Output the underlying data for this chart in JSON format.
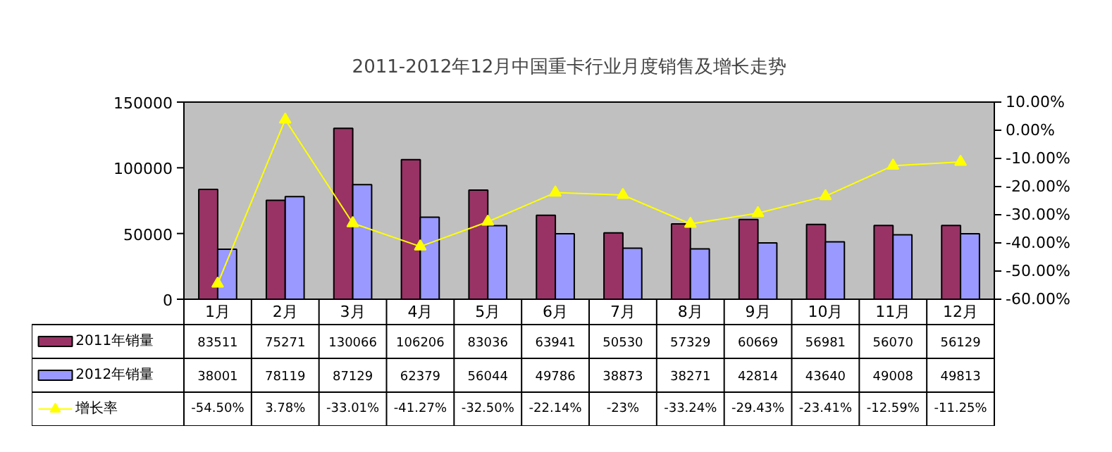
{
  "chart_data": {
    "type": "bar",
    "title": "2011-2012年12月中国重卡行业月度销售及增长走势",
    "categories": [
      "1月",
      "2月",
      "3月",
      "4月",
      "5月",
      "6月",
      "7月",
      "8月",
      "9月",
      "10月",
      "11月",
      "12月"
    ],
    "series": [
      {
        "name": "2011年销量",
        "color": "#993366",
        "values": [
          83511,
          75271,
          130066,
          106206,
          83036,
          63941,
          50530,
          57329,
          60669,
          56981,
          56070,
          56129
        ],
        "value_labels": [
          "83511",
          "75271",
          "130066",
          "106206",
          "83036",
          "63941",
          "50530",
          "57329",
          "60669",
          "56981",
          "56070",
          "56129"
        ]
      },
      {
        "name": "2012年销量",
        "color": "#9999ff",
        "values": [
          38001,
          78119,
          87129,
          62379,
          56044,
          49786,
          38873,
          38271,
          42814,
          43640,
          49008,
          49813
        ],
        "value_labels": [
          "38001",
          "78119",
          "87129",
          "62379",
          "56044",
          "49786",
          "38873",
          "38271",
          "42814",
          "43640",
          "49008",
          "49813"
        ]
      },
      {
        "name": "增长率",
        "type": "line",
        "axis": "y2",
        "marker": "triangle",
        "color": "#ffff00",
        "values": [
          -54.5,
          3.78,
          -33.01,
          -41.27,
          -32.5,
          -22.14,
          -23,
          -33.24,
          -29.43,
          -23.41,
          -12.59,
          -11.25
        ],
        "value_labels": [
          "-54.50%",
          "3.78%",
          "-33.01%",
          "-41.27%",
          "-32.50%",
          "-22.14%",
          "-23%",
          "-33.24%",
          "-29.43%",
          "-23.41%",
          "-12.59%",
          "-11.25%"
        ]
      }
    ],
    "ylim": [
      0,
      150000
    ],
    "yticks": [
      0,
      50000,
      100000,
      150000
    ],
    "y2lim": [
      -60,
      10
    ],
    "y2ticks": [
      {
        "value": -60,
        "label": "-60.00%"
      },
      {
        "value": -50,
        "label": "-50.00%"
      },
      {
        "value": -40,
        "label": "-40.00%"
      },
      {
        "value": -30,
        "label": "-30.00%"
      },
      {
        "value": -20,
        "label": "-20.00%"
      },
      {
        "value": -10,
        "label": "-10.00%"
      },
      {
        "value": 0,
        "label": "0.00%"
      },
      {
        "value": 10,
        "label": "10.00%"
      }
    ],
    "grid": false,
    "legend": "bottom"
  }
}
